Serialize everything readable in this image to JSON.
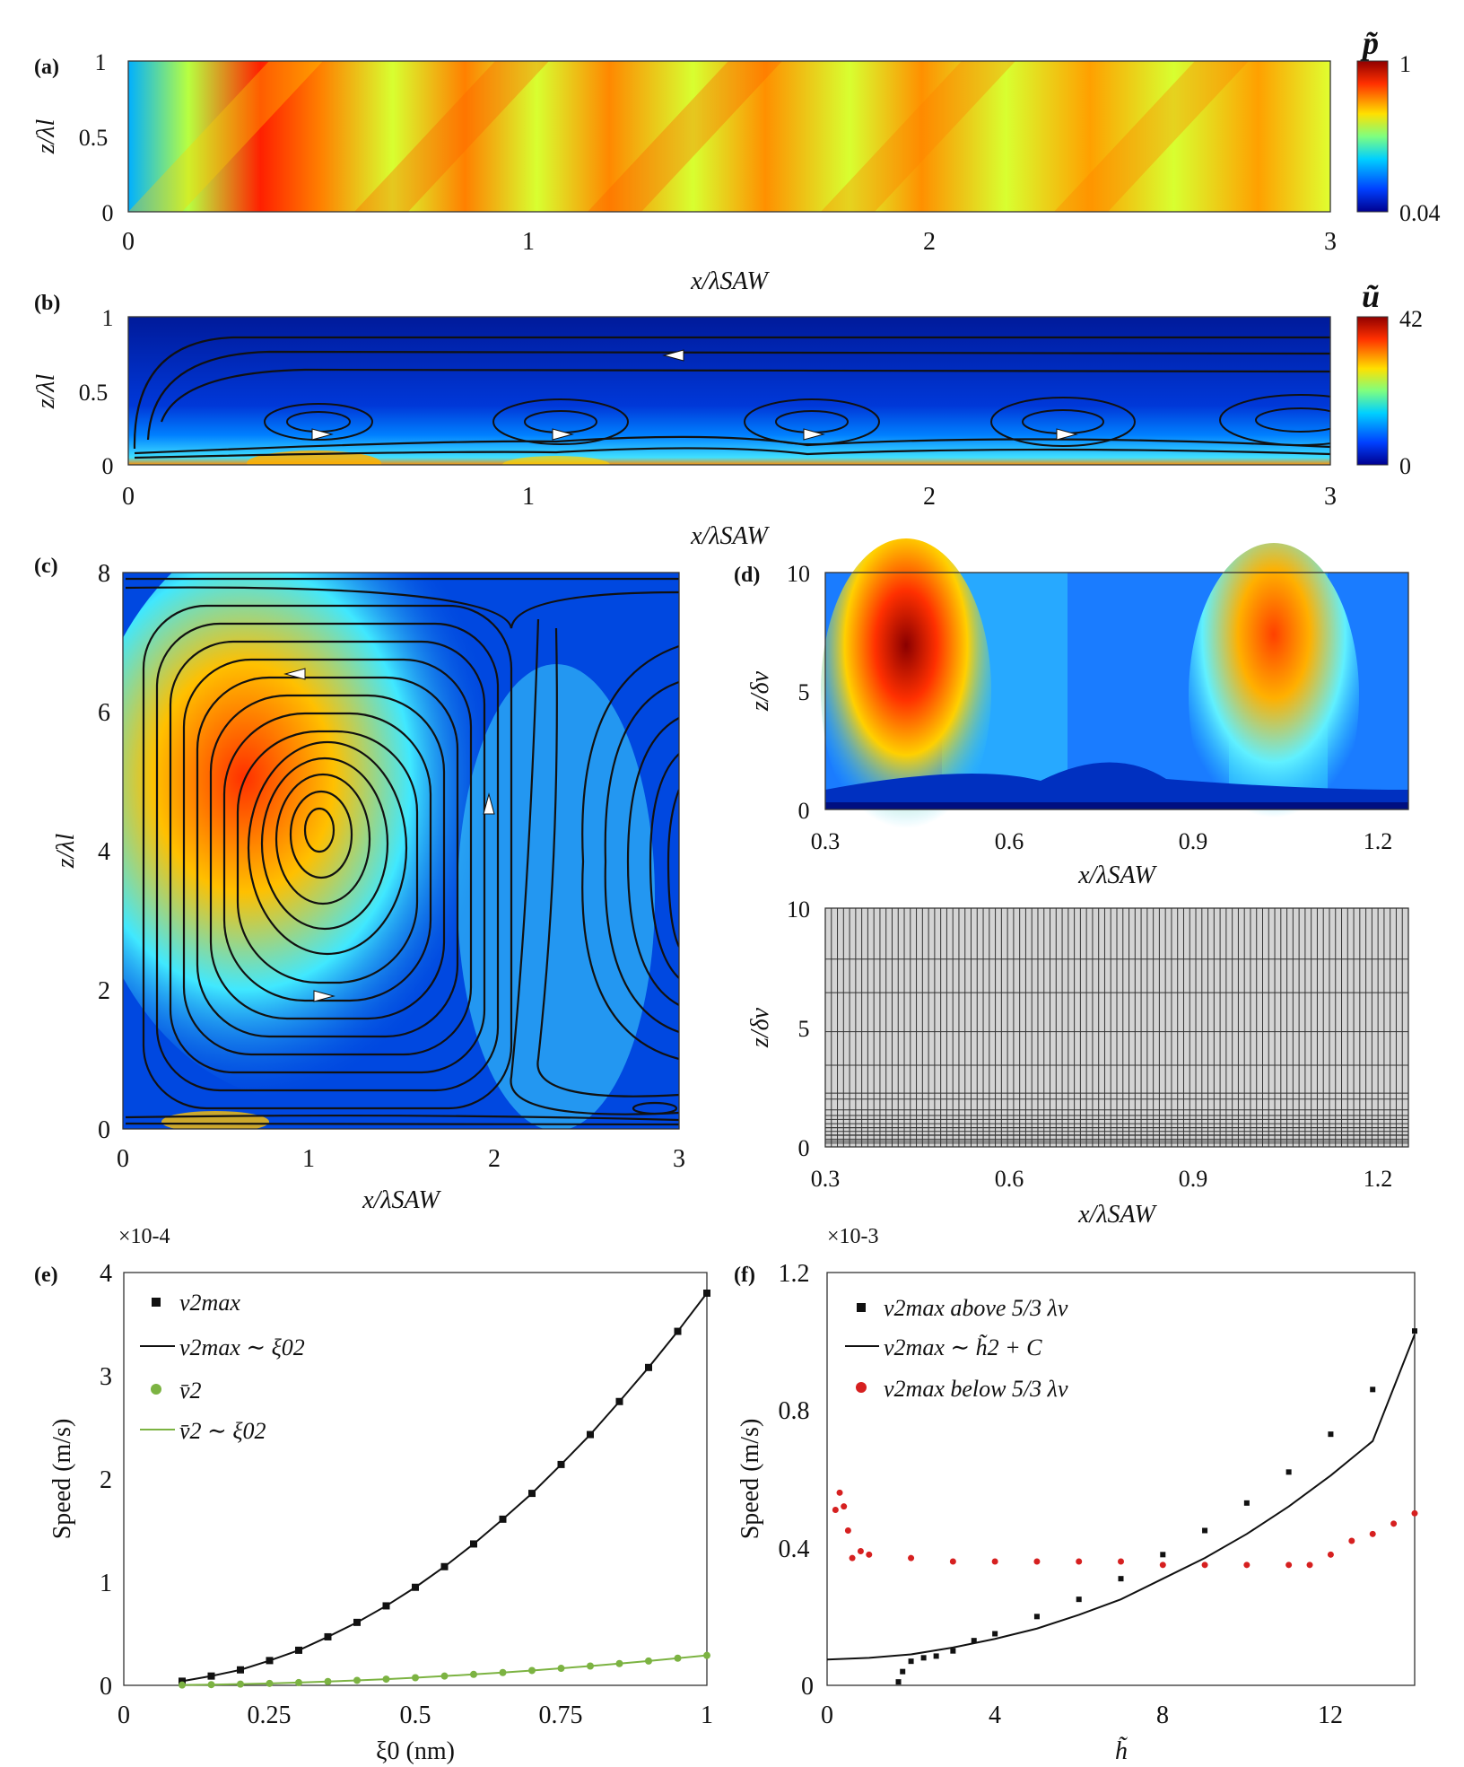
{
  "figure": {
    "panels": [
      {
        "id": "a",
        "label": "(a)"
      },
      {
        "id": "b",
        "label": "(b)"
      },
      {
        "id": "c",
        "label": "(c)"
      },
      {
        "id": "d",
        "label": "(d)"
      },
      {
        "id": "e",
        "label": "(e)"
      },
      {
        "id": "f",
        "label": "(f)"
      }
    ]
  },
  "chart_data": [
    {
      "panel": "a",
      "type": "heatmap",
      "xlabel": "x/λSAW",
      "ylabel": "z/λl",
      "xlim": [
        0,
        3
      ],
      "ylim": [
        0,
        1
      ],
      "xticks": [
        "0",
        "1",
        "2",
        "3"
      ],
      "yticks": [
        "0",
        "0.5",
        "1"
      ],
      "colorbar": {
        "label": "p̃",
        "max": "1",
        "min": "0.04"
      },
      "colormap": [
        "#00008f",
        "#0055ff",
        "#00d4ff",
        "#7fff7f",
        "#ffd400",
        "#ff4000",
        "#a00000"
      ]
    },
    {
      "panel": "b",
      "type": "heatmap",
      "xlabel": "x/λSAW",
      "ylabel": "z/λl",
      "xlim": [
        0,
        3
      ],
      "ylim": [
        0,
        1
      ],
      "xticks": [
        "0",
        "1",
        "2",
        "3"
      ],
      "yticks": [
        "0",
        "0.5",
        "1"
      ],
      "colorbar": {
        "label": "ũ",
        "max": "42",
        "min": "0"
      },
      "streamlines": true
    },
    {
      "panel": "c",
      "type": "heatmap",
      "xlabel": "x/λSAW",
      "ylabel": "z/λl",
      "xlim": [
        0,
        3
      ],
      "ylim": [
        0,
        8
      ],
      "xticks": [
        "0",
        "1",
        "2",
        "3"
      ],
      "yticks": [
        "0",
        "2",
        "4",
        "6",
        "8"
      ],
      "streamlines": true
    },
    {
      "panel": "d-top",
      "type": "heatmap",
      "xlabel": "x/λSAW",
      "ylabel": "z/δν",
      "xlim": [
        0.3,
        1.25
      ],
      "ylim": [
        0,
        10
      ],
      "xticks": [
        "0.3",
        "0.6",
        "0.9",
        "1.2"
      ],
      "yticks": [
        "0",
        "5",
        "10"
      ]
    },
    {
      "panel": "d-bottom",
      "type": "mesh",
      "xlabel": "x/λSAW",
      "ylabel": "z/δν",
      "xlim": [
        0.3,
        1.25
      ],
      "ylim": [
        0,
        10
      ],
      "xticks": [
        "0.3",
        "0.6",
        "0.9",
        "1.2"
      ],
      "yticks": [
        "0",
        "5",
        "10"
      ]
    },
    {
      "panel": "e",
      "type": "line",
      "xlabel": "ξ0 (nm)",
      "ylabel": "Speed (m/s)",
      "xlim": [
        0,
        1
      ],
      "ylim": [
        0,
        4
      ],
      "xticks": [
        "0",
        "0.25",
        "0.5",
        "0.75",
        "1"
      ],
      "yticks": [
        "0",
        "1",
        "2",
        "3",
        "4"
      ],
      "yexponent": "×10-4",
      "legend": [
        "v2max",
        "v2max ∼ ξ02",
        "v̄2",
        "v̄2 ∼ ξ02"
      ],
      "legend_placement": "top-left",
      "x": [
        0.1,
        0.15,
        0.2,
        0.25,
        0.3,
        0.35,
        0.4,
        0.45,
        0.5,
        0.55,
        0.6,
        0.65,
        0.7,
        0.75,
        0.8,
        0.85,
        0.9,
        0.95,
        1.0
      ],
      "series": [
        {
          "name": "v2max",
          "marker": "square",
          "color": "#111111",
          "values": [
            0.04,
            0.09,
            0.15,
            0.24,
            0.34,
            0.47,
            0.61,
            0.77,
            0.95,
            1.15,
            1.37,
            1.61,
            1.86,
            2.14,
            2.43,
            2.75,
            3.08,
            3.43,
            3.8
          ]
        },
        {
          "name": "v̄2",
          "marker": "circle",
          "color": "#7cb342",
          "values": [
            0.003,
            0.007,
            0.012,
            0.019,
            0.027,
            0.037,
            0.048,
            0.06,
            0.074,
            0.09,
            0.106,
            0.124,
            0.144,
            0.165,
            0.187,
            0.211,
            0.236,
            0.263,
            0.29
          ]
        }
      ]
    },
    {
      "panel": "f",
      "type": "scatter",
      "xlabel": "h̃",
      "ylabel": "Speed (m/s)",
      "xlim": [
        0,
        14
      ],
      "ylim": [
        0,
        1.2
      ],
      "xticks": [
        "0",
        "4",
        "8",
        "12"
      ],
      "yticks": [
        "0",
        "0.4",
        "0.8",
        "1.2"
      ],
      "yexponent": "×10-3",
      "legend": [
        "v2max above 5/3 λv",
        "v2max ∼ h̃2 + C",
        "v2max below 5/3 λv"
      ],
      "legend_placement": "top-left",
      "series": [
        {
          "name": "v2max above 5/3 λv",
          "marker": "square",
          "color": "#111111",
          "x": [
            1.7,
            1.8,
            2.0,
            2.3,
            2.6,
            3.0,
            3.5,
            4.0,
            5.0,
            6.0,
            7.0,
            8.0,
            9.0,
            10.0,
            11.0,
            12.0,
            13.0,
            14.0
          ],
          "y": [
            0.01,
            0.04,
            0.07,
            0.08,
            0.085,
            0.1,
            0.13,
            0.15,
            0.2,
            0.25,
            0.31,
            0.38,
            0.45,
            0.53,
            0.62,
            0.73,
            0.86,
            1.03
          ]
        },
        {
          "name": "v2max ∼ h̃2 + C",
          "marker": "line",
          "color": "#111111",
          "x": [
            0,
            1,
            2,
            3,
            4,
            5,
            6,
            7,
            8,
            9,
            10,
            11,
            12,
            13,
            14
          ],
          "y": [
            0.075,
            0.08,
            0.09,
            0.11,
            0.135,
            0.165,
            0.205,
            0.25,
            0.31,
            0.37,
            0.44,
            0.52,
            0.61,
            0.71,
            1.02
          ]
        },
        {
          "name": "v2max below 5/3 λv",
          "marker": "circle",
          "color": "#d62020",
          "x": [
            0.2,
            0.3,
            0.4,
            0.5,
            0.6,
            0.8,
            1.0,
            2.0,
            3.0,
            4.0,
            5.0,
            6.0,
            7.0,
            8.0,
            9.0,
            10.0,
            11.0,
            11.5,
            12.0,
            12.5,
            13.0,
            13.5,
            14.0
          ],
          "y": [
            0.51,
            0.56,
            0.52,
            0.45,
            0.37,
            0.39,
            0.38,
            0.37,
            0.36,
            0.36,
            0.36,
            0.36,
            0.36,
            0.35,
            0.35,
            0.35,
            0.35,
            0.35,
            0.38,
            0.42,
            0.44,
            0.47,
            0.5
          ]
        }
      ]
    }
  ]
}
